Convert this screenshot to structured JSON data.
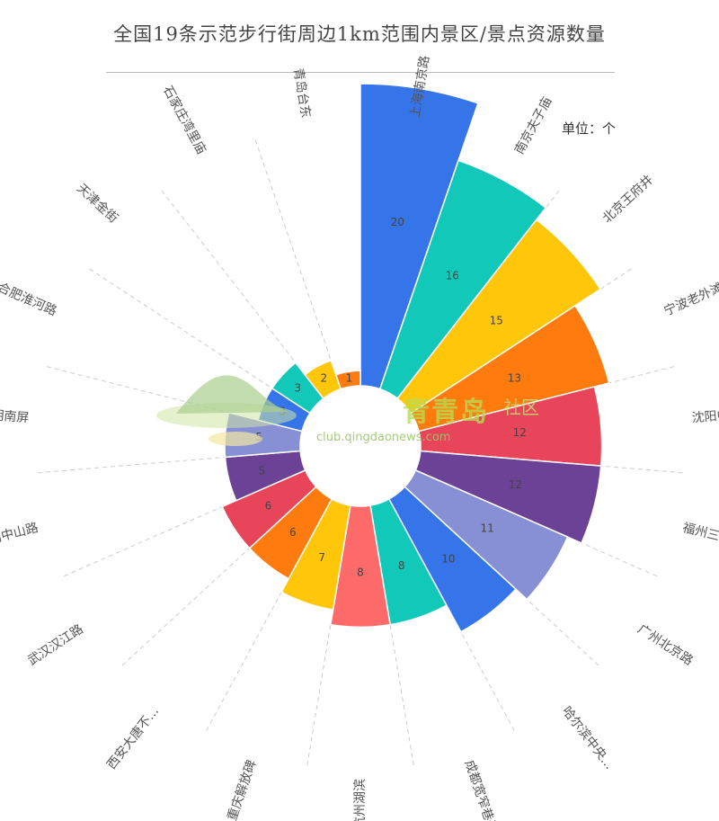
{
  "header": {
    "title": "全国19条示范步行街周边1km范围内景区/景点资源数量",
    "unit": "单位：个"
  },
  "watermark": {
    "logo_text": "青青岛",
    "logo_sub": "社区",
    "url": "club.qingdaonews.com"
  },
  "chart_data": {
    "type": "polar-bar (rose)",
    "title": "全国19条示范步行街周边1km范围内景区/景点资源数量",
    "unit": "单位：个",
    "direction": "clockwise from top",
    "categories": [
      "上海南京路",
      "南京夫子庙",
      "北京王府井",
      "宁波老外滩",
      "沈阳中街",
      "福州三坊七巷",
      "广州北京路",
      "哈尔滨中央...",
      "成都宽窄巷子",
      "杭州湖滨",
      "重庆解放碑",
      "西安大唐不...",
      "武汉汉江路",
      "厦门中山路",
      "昆明南屏",
      "合肥淮河路",
      "天津金街",
      "石家庄湾里庙",
      "青岛台东"
    ],
    "values": [
      20,
      16,
      15,
      13,
      12,
      12,
      11,
      10,
      8,
      8,
      7,
      6,
      6,
      5,
      5,
      3,
      3,
      2,
      1
    ],
    "colors": [
      "#3674ea",
      "#12c9b9",
      "#ffc60a",
      "#ff7b0d",
      "#e8445a",
      "#6c4296",
      "#8790d4",
      "#3674ea",
      "#12c9b9",
      "#fd6a6a",
      "#ffc60a",
      "#ff7b0d",
      "#e8445a",
      "#6c4296",
      "#8790d4",
      "#3674ea",
      "#12c9b9",
      "#ffc60a",
      "#ff7b0d"
    ],
    "grid_lines": "dashed radial"
  }
}
